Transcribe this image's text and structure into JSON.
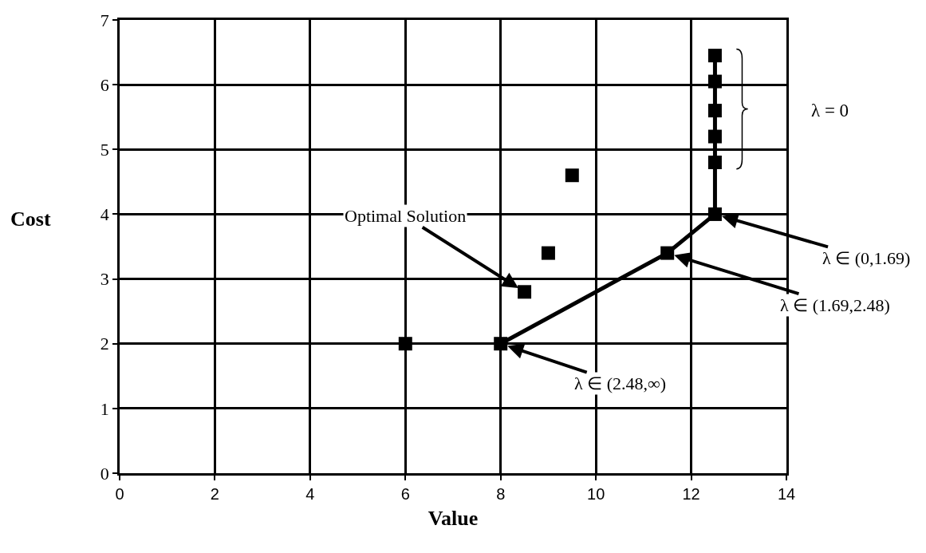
{
  "chart_data": {
    "type": "scatter",
    "xlabel": "Value",
    "ylabel": "Cost",
    "series": [
      {
        "type": "scatter",
        "color": "#000000",
        "x": [
          6,
          8.5,
          9,
          9.5
        ],
        "values": [
          2,
          2.8,
          3.4,
          4.6
        ]
      },
      {
        "type": "line",
        "color": "#000000",
        "x": [
          8,
          11.5,
          12.5,
          12.5,
          12.5,
          12.5,
          12.5,
          12.5
        ],
        "values": [
          2,
          3.4,
          4,
          4.8,
          5.2,
          5.6,
          6.05,
          6.45
        ]
      }
    ],
    "xlim": [
      0,
      14
    ],
    "xticks": [
      0,
      2,
      4,
      6,
      8,
      10,
      12,
      14
    ],
    "ylim": [
      0,
      7
    ],
    "yticks": [
      0,
      1,
      2,
      3,
      4,
      5,
      6,
      7
    ],
    "grid": true,
    "marker": "square",
    "line_style": "solid",
    "annotations": [
      {
        "text": "Optimal Solution",
        "x": 8.5,
        "y": 2.8
      },
      {
        "text": "λ ∈ (2.48,∞)",
        "x": 8,
        "y": 2
      },
      {
        "text": "λ ∈ (1.69,2.48)",
        "x": 11.5,
        "y": 3.4
      },
      {
        "text": "λ ∈ (0,1.69)",
        "x": 12.5,
        "y": 4
      },
      "λ = 0"
    ]
  }
}
